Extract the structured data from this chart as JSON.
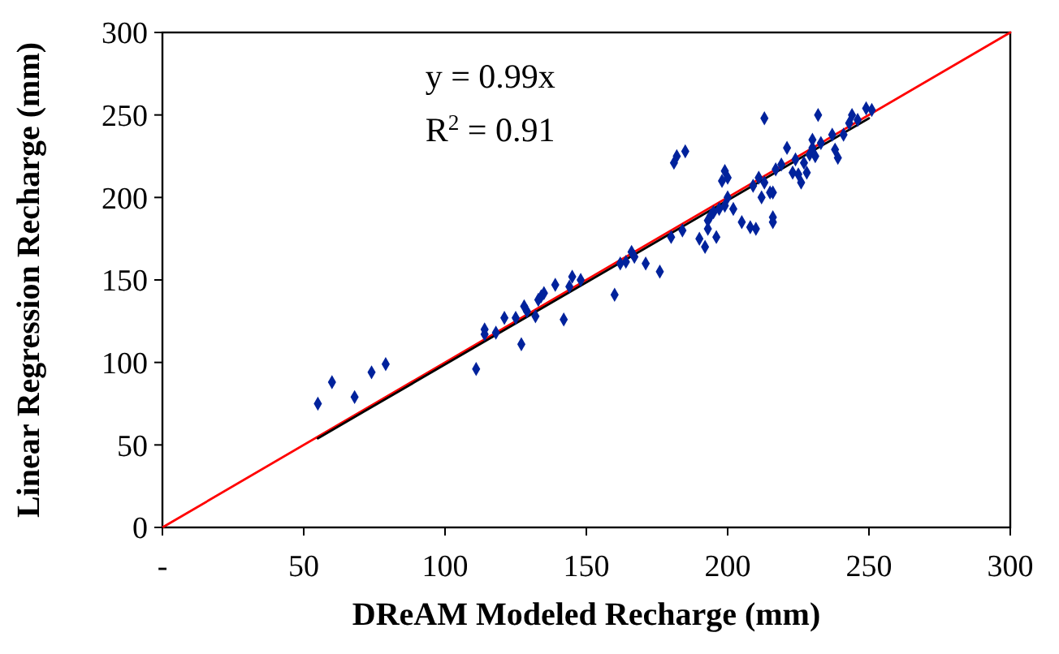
{
  "chart_data": {
    "type": "scatter",
    "xlabel": "DReAM Modeled Recharge (mm)",
    "ylabel": "Linear Regression Recharge (mm)",
    "annotations": [
      "y = 0.99x",
      "R$^{2}$ = 0.91"
    ],
    "xlim": [
      0,
      300
    ],
    "ylim": [
      0,
      300
    ],
    "xticks": [
      {
        "value": 0,
        "label": "-"
      },
      50,
      100,
      150,
      200,
      250,
      300
    ],
    "yticks": [
      0,
      50,
      100,
      150,
      200,
      250,
      300
    ],
    "grid": false,
    "marker": "diamond",
    "series": [
      {
        "type": "line",
        "color": "#ff0000",
        "x": [
          0,
          300
        ],
        "values": [
          0,
          300
        ],
        "line_style": "solid",
        "marker": "none"
      },
      {
        "type": "line",
        "color": "#000000",
        "x": [
          55,
          250
        ],
        "values": [
          54,
          248
        ],
        "line_style": "solid",
        "marker": "none"
      },
      {
        "color": "#00229c",
        "x": [
          55,
          60,
          68,
          74,
          79,
          111,
          114,
          114,
          118,
          121,
          125,
          127,
          128,
          129,
          132,
          133,
          134,
          135,
          139,
          142,
          144,
          145,
          148,
          160,
          162,
          164,
          166,
          167,
          171,
          176,
          180,
          181,
          182,
          184,
          185,
          190,
          192,
          193,
          193,
          194,
          195,
          196,
          197,
          198,
          199,
          199,
          200,
          200,
          202,
          205,
          208,
          209,
          210,
          211,
          212,
          213,
          213,
          215,
          216,
          216,
          216,
          217,
          219,
          221,
          223,
          224,
          225,
          226,
          227,
          228,
          229,
          230,
          230,
          231,
          232,
          233,
          237,
          238,
          239,
          241,
          243,
          244,
          246,
          249,
          251
        ],
        "values": [
          75,
          88,
          79,
          94,
          99,
          96,
          120,
          117,
          118,
          127,
          127,
          111,
          134,
          131,
          128,
          138,
          140,
          142,
          147,
          126,
          146,
          152,
          150,
          141,
          160,
          161,
          167,
          164,
          160,
          155,
          176,
          221,
          225,
          180,
          228,
          175,
          170,
          181,
          186,
          189,
          191,
          176,
          193,
          210,
          216,
          195,
          212,
          200,
          193,
          185,
          182,
          207,
          181,
          212,
          200,
          248,
          209,
          203,
          203,
          188,
          185,
          217,
          220,
          230,
          215,
          223,
          214,
          209,
          221,
          215,
          226,
          235,
          230,
          225,
          250,
          233,
          238,
          229,
          224,
          238,
          245,
          250,
          247,
          254,
          253
        ]
      }
    ]
  }
}
